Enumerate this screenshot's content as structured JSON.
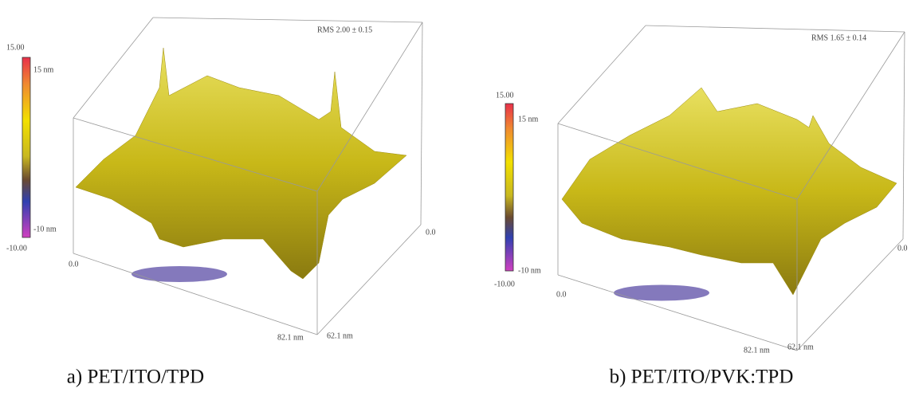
{
  "panels": [
    {
      "rms": "RMS 2.00 ± 0.15",
      "colorbar": {
        "max": "15.00",
        "top_label": "15 nm",
        "bottom_label": "-10 nm",
        "min": "-10.00"
      },
      "axes": {
        "origin": "0.0",
        "right_zero": "0.0",
        "x_end": "82.1 nm",
        "y_end": "62.1 nm"
      },
      "caption": "a) PET/ITO/TPD"
    },
    {
      "rms": "RMS 1.65 ± 0.14",
      "colorbar": {
        "max": "15.00",
        "top_label": "15 nm",
        "bottom_label": "-10 nm",
        "min": "-10.00"
      },
      "axes": {
        "origin": "0.0",
        "right_zero": "0.0",
        "x_end": "82.1 nm",
        "y_end": "62.1 nm"
      },
      "caption": "b) PET/ITO/PVK:TPD"
    }
  ]
}
